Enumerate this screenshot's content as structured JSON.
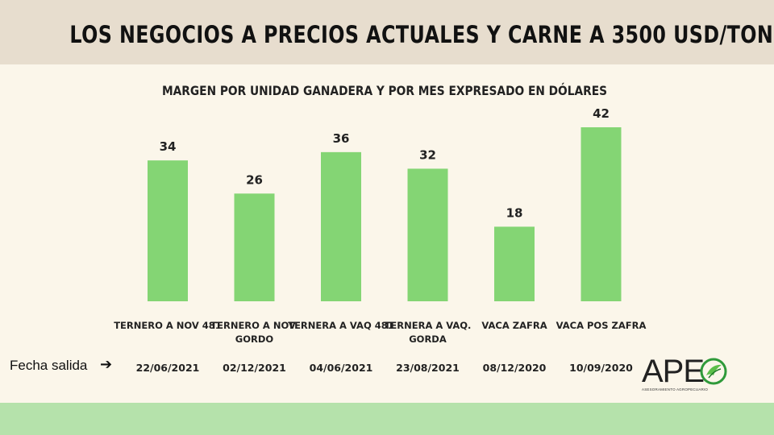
{
  "header": {
    "title": "LOS NEGOCIOS A PRECIOS ACTUALES Y CARNE A 3500 USD/TON"
  },
  "chart_data": {
    "type": "bar",
    "title": "MARGEN POR UNIDAD GANADERA Y POR MES EXPRESADO EN DÓLARES",
    "categories": [
      [
        "TERNERO A NOV 481"
      ],
      [
        "TERNERO A NOV.",
        "GORDO"
      ],
      [
        "TERNERA A VAQ 481"
      ],
      [
        "TERNERA A VAQ.",
        "GORDA"
      ],
      [
        "VACA ZAFRA"
      ],
      [
        "VACA POS ZAFRA"
      ]
    ],
    "values": [
      34,
      26,
      36,
      32,
      18,
      42
    ],
    "dates": [
      "22/06/2021",
      "02/12/2021",
      "04/06/2021",
      "23/08/2021",
      "08/12/2020",
      "10/09/2020"
    ],
    "ylim": [
      0,
      42
    ],
    "grid": false,
    "bar_color": "#84d574"
  },
  "row_label": "Fecha salida",
  "logo": {
    "text": "APE",
    "subtitle": "ASESORAMIENTO AGROPECUARIO"
  },
  "colors": {
    "header_band": "#e7ddce",
    "background": "#fbf6ea",
    "footer_band": "#b5e2ab"
  }
}
